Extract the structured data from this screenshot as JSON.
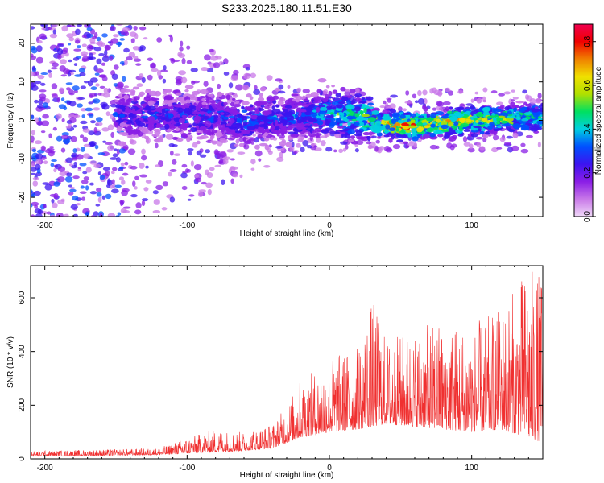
{
  "title": "S233.2025.180.11.51.E30",
  "colors": {
    "snr_line": "#f03030",
    "axis": "#000000"
  },
  "colormap": [
    "#f0d8f8",
    "#c878e8",
    "#8a1ee6",
    "#3c14f0",
    "#0050ff",
    "#00d0e0",
    "#00e060",
    "#b0e000",
    "#f0e000",
    "#f08000",
    "#f00000",
    "#f00050"
  ],
  "chart_data": [
    {
      "type": "heatmap",
      "xlabel": "Height of straight line (km)",
      "ylabel": "Frequency (Hz)",
      "xlim": [
        -210,
        150
      ],
      "ylim": [
        -25,
        25
      ],
      "xticks": [
        -200,
        -100,
        0,
        100
      ],
      "xtick_labels": [
        "-200",
        "-100",
        "0",
        "100"
      ],
      "yticks": [
        -20,
        -10,
        0,
        10,
        20
      ],
      "ytick_labels": [
        "-20",
        "-10",
        "0",
        "10",
        "20"
      ],
      "colorbar": {
        "label": "Normalized spectral amplitude",
        "range": [
          0,
          0.88
        ],
        "ticks": [
          0,
          0.2,
          0.4,
          0.6,
          0.8
        ],
        "tick_labels": [
          "0.0",
          "0.2",
          "0.4",
          "0.6",
          "0.8"
        ]
      },
      "description_points": {
        "band_center_hz": [
          [
            -140,
            1.5
          ],
          [
            -100,
            1.0
          ],
          [
            -60,
            0.0
          ],
          [
            -20,
            1.0
          ],
          [
            0,
            2.0
          ],
          [
            20,
            1.0
          ],
          [
            40,
            -1.0
          ],
          [
            60,
            -1.5
          ],
          [
            80,
            -0.5
          ],
          [
            100,
            0.0
          ],
          [
            120,
            0.5
          ],
          [
            150,
            1.0
          ]
        ],
        "peak_amplitude": [
          [
            -140,
            0.3
          ],
          [
            -100,
            0.3
          ],
          [
            -60,
            0.35
          ],
          [
            -20,
            0.35
          ],
          [
            0,
            0.45
          ],
          [
            20,
            0.55
          ],
          [
            40,
            0.7
          ],
          [
            55,
            0.85
          ],
          [
            70,
            0.7
          ],
          [
            90,
            0.75
          ],
          [
            120,
            0.6
          ],
          [
            150,
            0.55
          ]
        ]
      }
    },
    {
      "type": "line",
      "xlabel": "Height of straight line (km)",
      "ylabel": "SNR (10 * v/v)",
      "xlim": [
        -210,
        150
      ],
      "ylim": [
        0,
        720
      ],
      "xticks": [
        -200,
        -100,
        0,
        100
      ],
      "xtick_labels": [
        "-200",
        "-100",
        "0",
        "100"
      ],
      "yticks": [
        0,
        200,
        400,
        600
      ],
      "ytick_labels": [
        "0",
        "200",
        "400",
        "600"
      ],
      "envelope": {
        "x": [
          -210,
          -160,
          -120,
          -100,
          -80,
          -60,
          -40,
          -30,
          -20,
          -10,
          0,
          20,
          30,
          40,
          60,
          80,
          100,
          120,
          140,
          150
        ],
        "base": [
          10,
          12,
          15,
          20,
          25,
          30,
          40,
          60,
          80,
          90,
          100,
          110,
          120,
          130,
          120,
          110,
          100,
          110,
          80,
          60
        ],
        "peak": [
          30,
          35,
          40,
          80,
          110,
          100,
          130,
          200,
          300,
          330,
          380,
          420,
          600,
          450,
          480,
          520,
          500,
          560,
          720,
          690
        ]
      }
    }
  ]
}
